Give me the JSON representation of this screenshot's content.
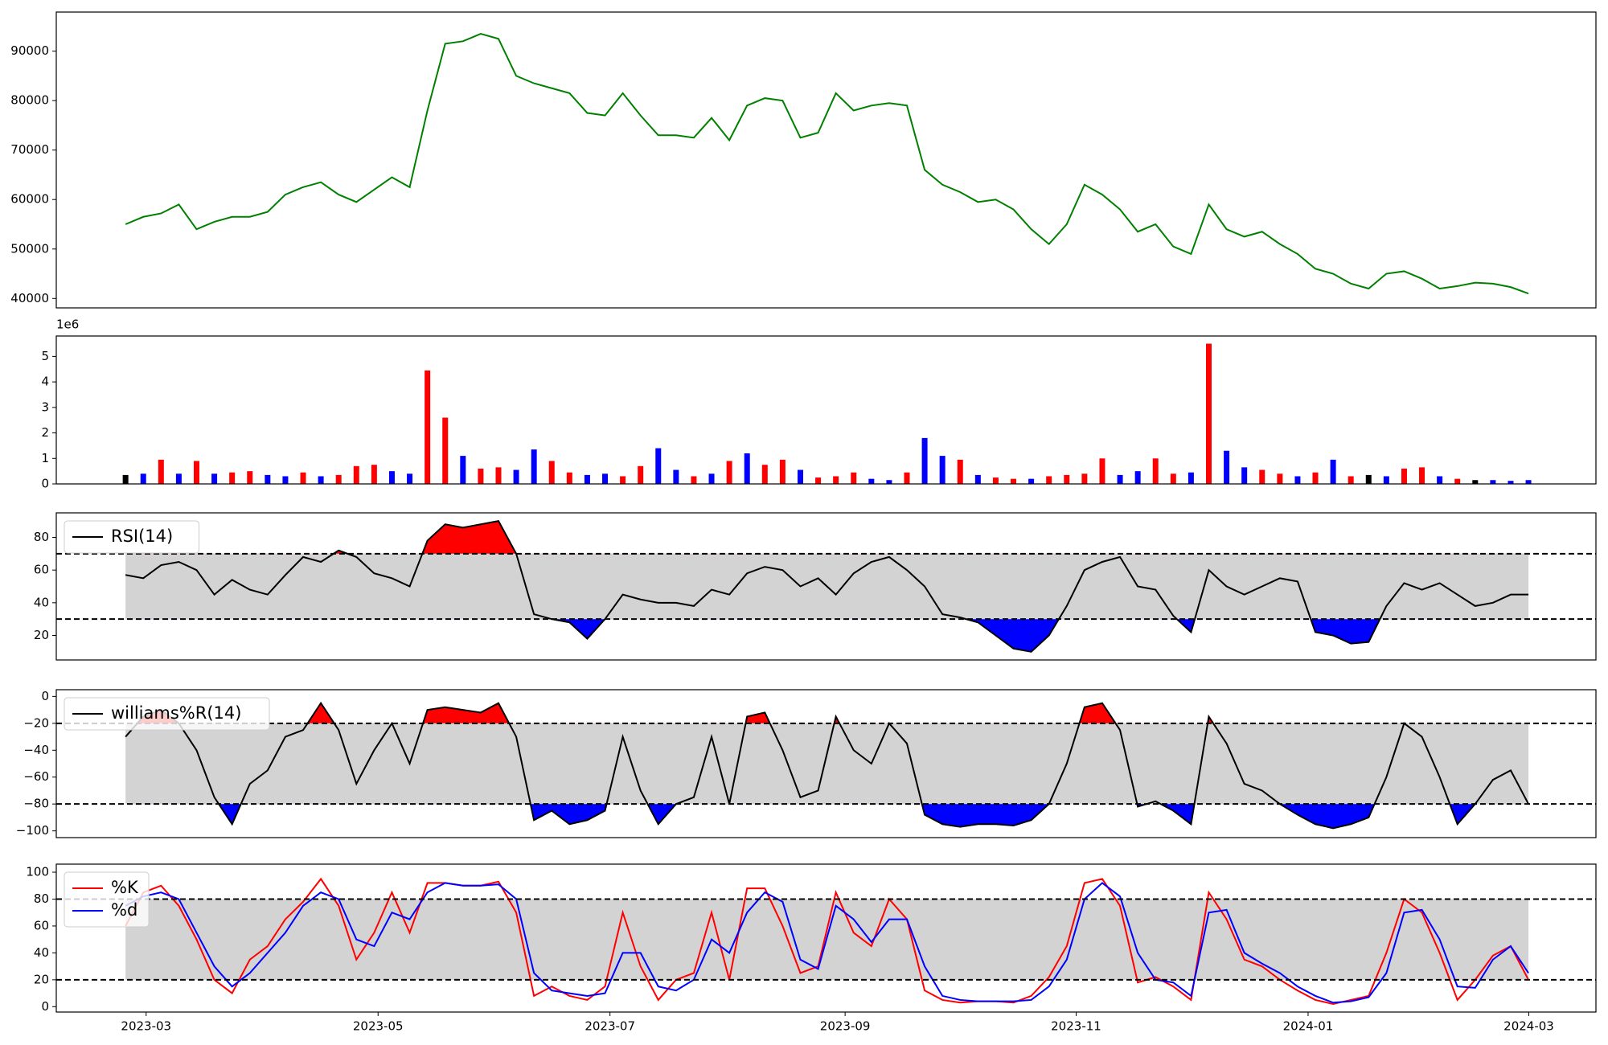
{
  "chart_data": [
    {
      "type": "line",
      "series": [
        {
          "color": "green",
          "values": [
            55000,
            56500,
            57200,
            59000,
            54000,
            55500,
            56500,
            56500,
            57500,
            61000,
            62500,
            63500,
            61000,
            59500,
            62000,
            64500,
            62500,
            78000,
            91500,
            92000,
            93500,
            92500,
            85000,
            83500,
            82500,
            81500,
            77500,
            77000,
            81500,
            77000,
            73000,
            73000,
            72500,
            76500,
            72000,
            79000,
            80500,
            80000,
            72500,
            73500,
            81500,
            78000,
            79000,
            79500,
            79000,
            66000,
            63000,
            61500,
            59500,
            60000,
            58000,
            54000,
            51000,
            55000,
            63000,
            61000,
            58000,
            53500,
            55000,
            50500,
            49000,
            59000,
            54000,
            52500,
            53500,
            51000,
            49000,
            46000,
            45000,
            43000,
            42000,
            45000,
            45500,
            44000,
            42000,
            42500,
            43200,
            43000,
            42300,
            41000
          ]
        }
      ],
      "ylim": [
        38100,
        97900
      ],
      "yticks": [
        40000,
        50000,
        60000,
        70000,
        80000,
        90000
      ]
    },
    {
      "type": "bar",
      "offset_label": "1e6",
      "values": [
        0.35,
        0.4,
        0.95,
        0.4,
        0.9,
        0.4,
        0.45,
        0.5,
        0.35,
        0.3,
        0.45,
        0.3,
        0.35,
        0.7,
        0.75,
        0.5,
        0.4,
        4.45,
        2.6,
        1.1,
        0.6,
        0.65,
        0.55,
        1.35,
        0.9,
        0.45,
        0.35,
        0.4,
        0.3,
        0.7,
        1.4,
        0.55,
        0.3,
        0.4,
        0.9,
        1.2,
        0.75,
        0.95,
        0.55,
        0.25,
        0.3,
        0.45,
        0.2,
        0.15,
        0.45,
        1.8,
        1.1,
        0.95,
        0.35,
        0.25,
        0.2,
        0.2,
        0.3,
        0.35,
        0.4,
        1.0,
        0.35,
        0.5,
        1.0,
        0.4,
        0.45,
        5.5,
        1.3,
        0.65,
        0.55,
        0.4,
        0.3,
        0.45,
        0.95,
        0.3,
        0.35,
        0.3,
        0.6,
        0.65,
        0.3,
        0.2,
        0.15,
        0.15,
        0.12,
        0.15
      ],
      "colors": [
        "black",
        "blue",
        "red",
        "blue",
        "red",
        "blue",
        "red",
        "red",
        "blue",
        "blue",
        "red",
        "blue",
        "red",
        "red",
        "red",
        "blue",
        "blue",
        "red",
        "red",
        "blue",
        "red",
        "red",
        "blue",
        "blue",
        "red",
        "red",
        "blue",
        "blue",
        "red",
        "red",
        "blue",
        "blue",
        "red",
        "blue",
        "red",
        "blue",
        "red",
        "red",
        "blue",
        "red",
        "red",
        "red",
        "blue",
        "blue",
        "red",
        "blue",
        "blue",
        "red",
        "blue",
        "red",
        "red",
        "blue",
        "red",
        "red",
        "red",
        "red",
        "blue",
        "blue",
        "red",
        "red",
        "blue",
        "red",
        "blue",
        "blue",
        "red",
        "red",
        "blue",
        "red",
        "blue",
        "red",
        "black",
        "blue",
        "red",
        "red",
        "blue",
        "red",
        "black",
        "blue",
        "blue",
        "blue"
      ],
      "ylim": [
        0,
        5.8
      ],
      "yticks": [
        0,
        1,
        2,
        3,
        4,
        5
      ]
    },
    {
      "type": "line",
      "series": [
        {
          "name": "RSI(14)",
          "color": "black",
          "values": [
            57,
            55,
            63,
            65,
            60,
            45,
            54,
            48,
            45,
            57,
            68,
            65,
            72,
            68,
            58,
            55,
            50,
            78,
            88,
            86,
            88,
            90,
            70,
            33,
            30,
            28,
            18,
            30,
            45,
            42,
            40,
            40,
            38,
            48,
            45,
            58,
            62,
            60,
            50,
            55,
            45,
            58,
            65,
            68,
            60,
            50,
            33,
            31,
            28,
            20,
            12,
            10,
            20,
            38,
            60,
            65,
            68,
            50,
            48,
            32,
            22,
            60,
            50,
            45,
            50,
            55,
            53,
            22,
            20,
            15,
            16,
            38,
            52,
            48,
            52,
            45,
            38,
            40,
            45,
            45
          ]
        }
      ],
      "hlines": [
        30,
        70
      ],
      "band_color": "lightgray",
      "fill_above": "red",
      "fill_below": "blue",
      "legend": "upper left",
      "ylim": [
        5,
        95
      ],
      "yticks": [
        20,
        40,
        60,
        80
      ]
    },
    {
      "type": "line",
      "series": [
        {
          "name": "williams%R(14)",
          "color": "black",
          "values": [
            -30,
            -15,
            -10,
            -20,
            -40,
            -75,
            -95,
            -65,
            -55,
            -30,
            -25,
            -5,
            -25,
            -65,
            -40,
            -20,
            -50,
            -10,
            -8,
            -10,
            -12,
            -5,
            -30,
            -92,
            -85,
            -95,
            -92,
            -85,
            -30,
            -70,
            -95,
            -80,
            -75,
            -30,
            -80,
            -15,
            -12,
            -40,
            -75,
            -70,
            -15,
            -40,
            -50,
            -20,
            -35,
            -88,
            -95,
            -97,
            -95,
            -95,
            -96,
            -92,
            -80,
            -50,
            -8,
            -5,
            -25,
            -82,
            -78,
            -85,
            -95,
            -15,
            -35,
            -65,
            -70,
            -80,
            -88,
            -95,
            -98,
            -95,
            -90,
            -60,
            -20,
            -30,
            -60,
            -95,
            -80,
            -62,
            -55,
            -80
          ]
        }
      ],
      "hlines": [
        -80,
        -20
      ],
      "band_color": "lightgray",
      "fill_above": "red",
      "fill_below": "blue",
      "legend": "upper left",
      "ylim": [
        -105,
        5
      ],
      "yticks": [
        {
          "value": -100,
          "label": "−100"
        },
        {
          "value": -80,
          "label": "−80"
        },
        {
          "value": -60,
          "label": "−60"
        },
        {
          "value": -40,
          "label": "−40"
        },
        {
          "value": -20,
          "label": "−20"
        },
        0
      ]
    },
    {
      "type": "line",
      "series": [
        {
          "name": "%K",
          "color": "red",
          "values": [
            60,
            85,
            90,
            75,
            50,
            20,
            10,
            35,
            45,
            65,
            78,
            95,
            75,
            35,
            55,
            85,
            55,
            92,
            92,
            90,
            90,
            93,
            70,
            8,
            15,
            8,
            5,
            15,
            70,
            30,
            5,
            20,
            25,
            70,
            20,
            88,
            88,
            60,
            25,
            30,
            85,
            55,
            45,
            80,
            65,
            12,
            5,
            3,
            4,
            4,
            3,
            8,
            22,
            45,
            92,
            95,
            75,
            18,
            22,
            15,
            5,
            85,
            65,
            35,
            30,
            20,
            12,
            5,
            2,
            5,
            8,
            40,
            80,
            70,
            40,
            5,
            20,
            38,
            45,
            20
          ]
        },
        {
          "name": "%d",
          "color": "blue",
          "values": [
            75,
            82,
            85,
            80,
            55,
            30,
            15,
            25,
            40,
            55,
            75,
            85,
            80,
            50,
            45,
            70,
            65,
            85,
            92,
            90,
            90,
            91,
            80,
            25,
            12,
            10,
            8,
            10,
            40,
            40,
            15,
            12,
            20,
            50,
            40,
            70,
            85,
            78,
            35,
            28,
            75,
            65,
            48,
            65,
            65,
            30,
            8,
            5,
            4,
            4,
            4,
            5,
            15,
            35,
            80,
            92,
            82,
            40,
            20,
            18,
            8,
            70,
            72,
            40,
            32,
            25,
            15,
            8,
            3,
            4,
            7,
            25,
            70,
            72,
            50,
            15,
            14,
            35,
            45,
            25
          ]
        }
      ],
      "hlines": [
        20,
        80
      ],
      "band_color": "lightgray",
      "legend": "upper left",
      "ylim": [
        -4,
        106
      ],
      "yticks": [
        0,
        20,
        40,
        60,
        80,
        100
      ],
      "xlim": [
        -3.9,
        82.8
      ],
      "xticks": [
        {
          "value": 1.16,
          "label": "2023-03"
        },
        {
          "value": 14.22,
          "label": "2023-05"
        },
        {
          "value": 27.28,
          "label": "2023-07"
        },
        {
          "value": 40.52,
          "label": "2023-09"
        },
        {
          "value": 53.53,
          "label": "2023-11"
        },
        {
          "value": 66.59,
          "label": "2024-01"
        },
        {
          "value": 79.02,
          "label": "2024-03"
        }
      ]
    }
  ]
}
